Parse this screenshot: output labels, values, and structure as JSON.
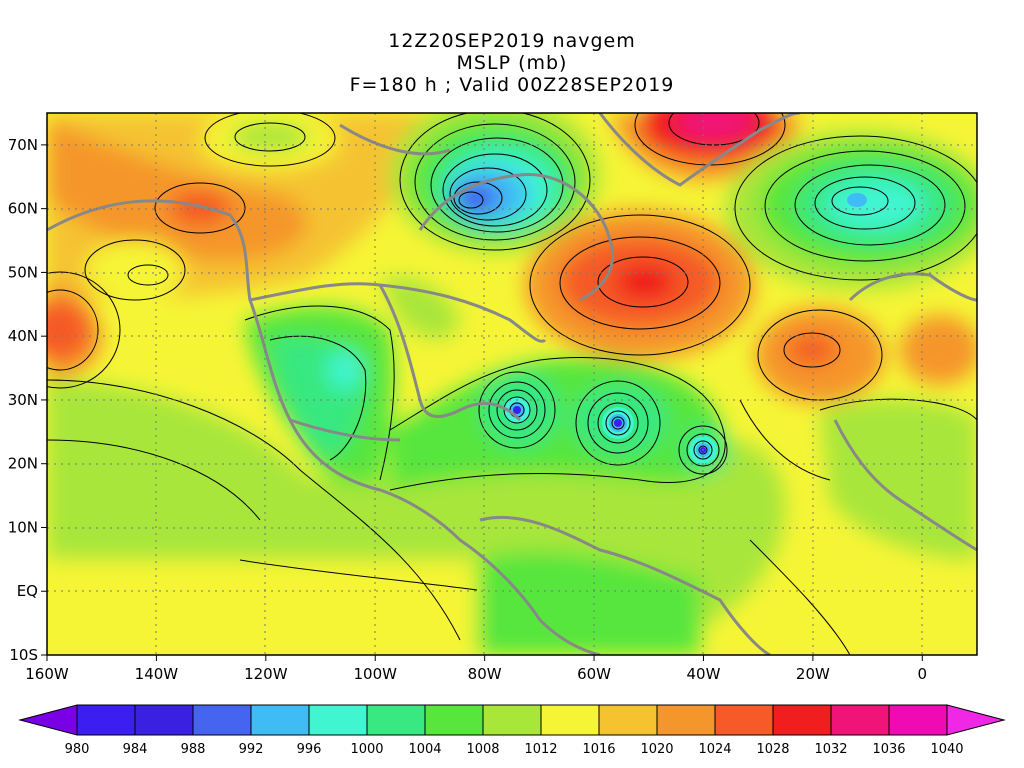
{
  "title": {
    "line1": "12Z20SEP2019 navgem",
    "line2": "MSLP (mb)",
    "line3": "F=180 h ; Valid 00Z28SEP2019"
  },
  "axes": {
    "lat_labels": [
      "70N",
      "60N",
      "50N",
      "40N",
      "30N",
      "20N",
      "10N",
      "EQ",
      "10S"
    ],
    "lat_values": [
      70,
      60,
      50,
      40,
      30,
      20,
      10,
      0,
      -10
    ],
    "lon_labels": [
      "160W",
      "140W",
      "120W",
      "100W",
      "80W",
      "60W",
      "40W",
      "20W",
      "0"
    ],
    "lon_values": [
      -160,
      -140,
      -120,
      -100,
      -80,
      -60,
      -40,
      -20,
      0
    ],
    "lon_range": [
      -160,
      10
    ],
    "lat_range": [
      -10,
      75
    ],
    "grid": "dotted"
  },
  "colorbar": {
    "labels": [
      "980",
      "984",
      "988",
      "992",
      "996",
      "1000",
      "1004",
      "1008",
      "1012",
      "1016",
      "1020",
      "1024",
      "1028",
      "1032",
      "1036",
      "1040"
    ],
    "colors": [
      "#7a00e6",
      "#3c1ef0",
      "#3a20e0",
      "#4565f0",
      "#3fbcf5",
      "#40f5d0",
      "#38e880",
      "#56e63c",
      "#a8e63a",
      "#f5f536",
      "#f5c330",
      "#f5962c",
      "#f55a28",
      "#f01e1e",
      "#f01478",
      "#f00ab4",
      "#f028e6"
    ]
  },
  "features": {
    "lows": [
      {
        "lon": -82,
        "lat": 61,
        "level": 988
      },
      {
        "lon": -74,
        "lat": 28,
        "level": 992
      },
      {
        "lon": -56,
        "lat": 26,
        "level": 992
      },
      {
        "lon": -40,
        "lat": 22,
        "level": 996
      },
      {
        "lon": -12,
        "lat": 61,
        "level": 1000
      }
    ],
    "highs": [
      {
        "lon": -47,
        "lat": 71,
        "level": 1036
      },
      {
        "lon": -51,
        "lat": 47,
        "level": 1028
      },
      {
        "lon": -157,
        "lat": 42,
        "level": 1028
      },
      {
        "lon": -133,
        "lat": 61,
        "level": 1028
      },
      {
        "lon": -19,
        "lat": 38,
        "level": 1028
      }
    ]
  }
}
